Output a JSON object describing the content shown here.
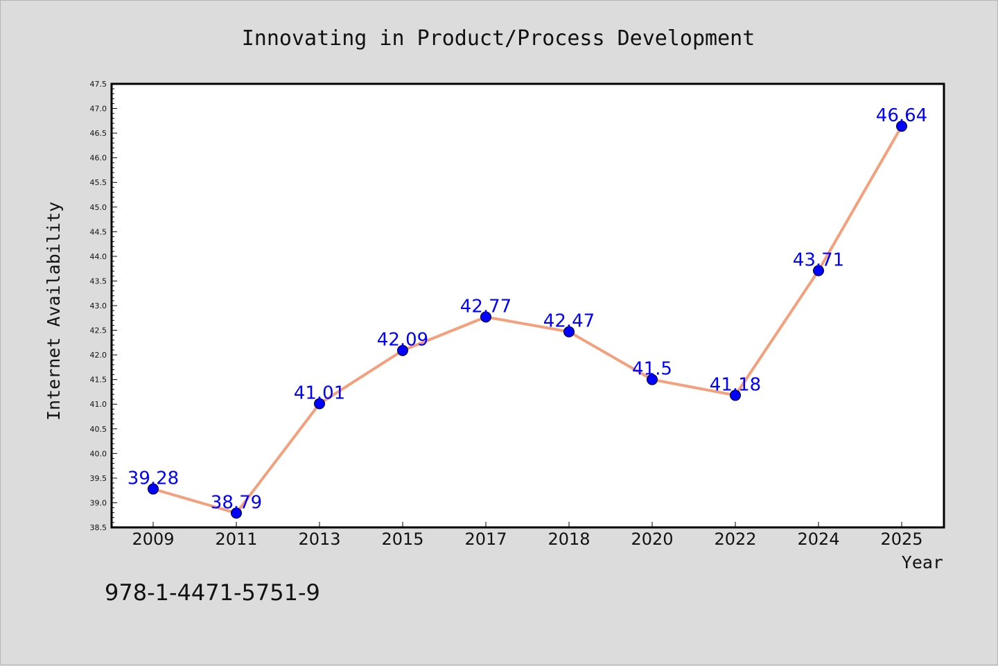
{
  "chart_data": {
    "type": "line",
    "title": "Innovating in Product/Process Development",
    "xlabel": "Year",
    "ylabel": "Internet Availability",
    "categories": [
      "2009",
      "2011",
      "2013",
      "2015",
      "2017",
      "2018",
      "2020",
      "2022",
      "2024",
      "2025"
    ],
    "values": [
      39.28,
      38.79,
      41.01,
      42.09,
      42.77,
      42.47,
      41.5,
      41.18,
      43.71,
      46.64
    ],
    "data_labels": [
      "39.28",
      "38.79",
      "41.01",
      "42.09",
      "42.77",
      "42.47",
      "41.5",
      "41.18",
      "43.71",
      "46.64"
    ],
    "ylim": [
      38.5,
      47.5
    ],
    "yticks": [
      "38.5",
      "39.0",
      "39.5",
      "40.0",
      "40.5",
      "41.0",
      "41.5",
      "42.0",
      "42.5",
      "43.0",
      "43.5",
      "44.0",
      "44.5",
      "45.0",
      "45.5",
      "46.0",
      "46.5",
      "47.0",
      "47.5"
    ],
    "grid": false,
    "line_color": "#f4a07c",
    "marker_color": "#0000ff",
    "label_color": "#0000ff"
  },
  "footer": {
    "isbn": "978-1-4471-5751-9"
  },
  "colors": {
    "background": "#dcdcdc",
    "plot_background": "#ffffff"
  }
}
